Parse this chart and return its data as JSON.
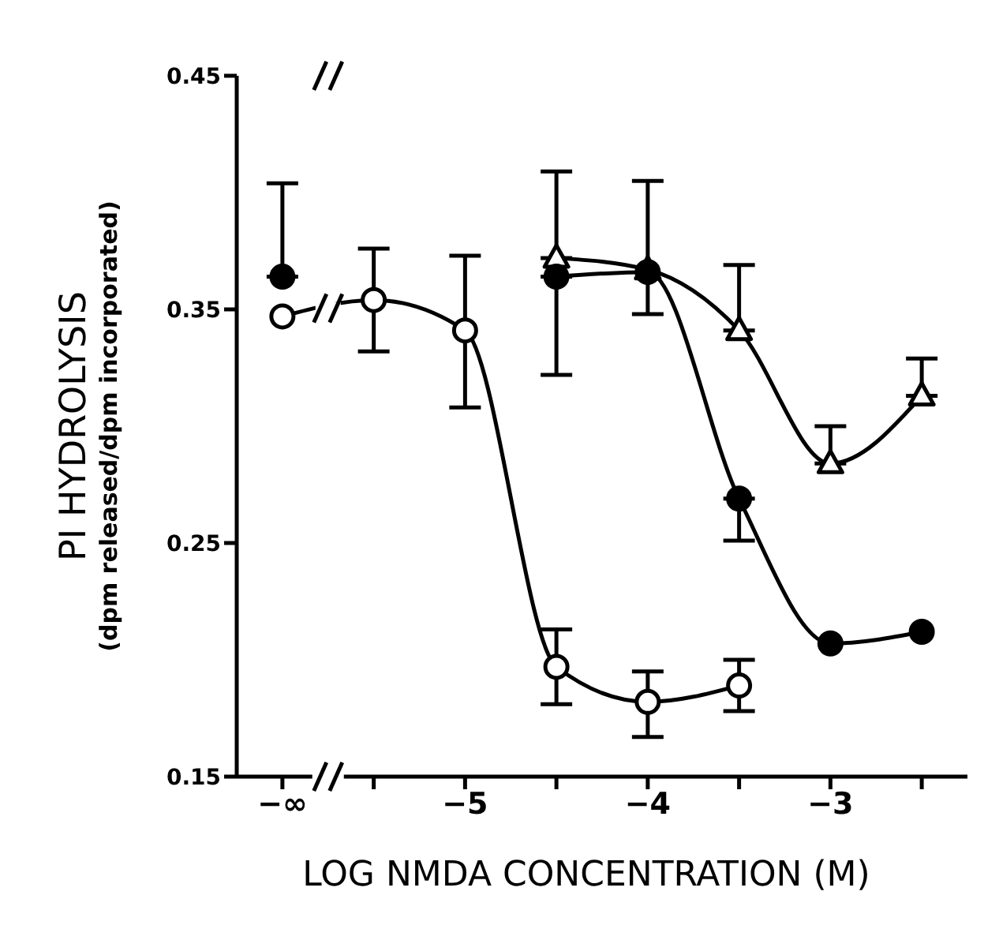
{
  "chart_data": {
    "type": "line",
    "xlabel": "LOG NMDA CONCENTRATION (M)",
    "ylabel": "PI HYDROLYSIS\n(dpm released/dpm incorporated)",
    "categories": [
      "−∞",
      null,
      "−5",
      null,
      "−4",
      null,
      "−3",
      null
    ],
    "ylim": [
      0.15,
      0.45
    ],
    "yticks": [
      0.15,
      0.25,
      0.35,
      0.45
    ],
    "line_style": "solid",
    "series": [
      {
        "color": "#ffffff",
        "marker": "circle",
        "values": [
          0.347,
          0.354,
          0.341,
          0.197,
          0.182,
          0.189,
          null,
          null
        ],
        "errors": [
          null,
          [
            0.332,
            0.376
          ],
          [
            0.308,
            0.373
          ],
          [
            0.181,
            0.213
          ],
          [
            0.167,
            0.195
          ],
          [
            0.178,
            0.2
          ],
          null,
          null
        ]
      },
      {
        "color": "#000000",
        "marker": "circle",
        "values": [
          0.364,
          null,
          null,
          0.364,
          0.366,
          0.269,
          0.207,
          0.212
        ],
        "errors": [
          [
            0.364,
            0.404
          ],
          null,
          null,
          [
            0.322,
            0.364
          ],
          [
            0.348,
            0.405
          ],
          [
            0.251,
            0.269
          ],
          null,
          null
        ]
      },
      {
        "color": "#ffffff",
        "marker": "triangle",
        "values": [
          null,
          null,
          null,
          0.372,
          0.367,
          0.341,
          0.284,
          0.313
        ],
        "errors": [
          null,
          null,
          null,
          [
            0.372,
            0.409
          ],
          null,
          [
            0.341,
            0.369
          ],
          [
            0.284,
            0.3
          ],
          [
            0.313,
            0.329
          ]
        ]
      }
    ]
  }
}
